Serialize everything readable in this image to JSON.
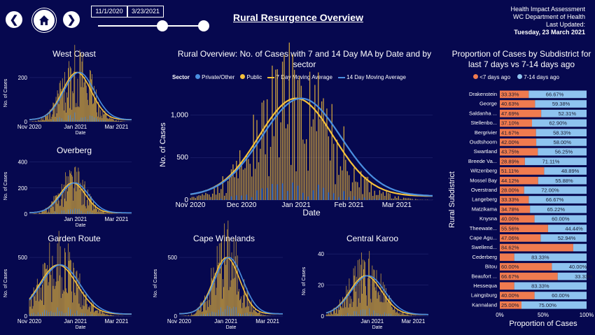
{
  "header": {
    "title": "Rural Resurgence Overview",
    "date_start": "11/1/2020",
    "date_end": "3/23/2021",
    "meta_lines": [
      "Health Impact Assessment",
      "WC Department of Health",
      "Last Updated:"
    ],
    "updated": "Tuesday, 23 March 2021"
  },
  "colors": {
    "background": "#06084f",
    "private": "#4a8fe0",
    "public": "#f5c13a",
    "ma14": "#4a8fe0",
    "ma7": "#f5c13a",
    "seven_days": "#f07b4f",
    "fourteen_days": "#8ec3ef"
  },
  "legend": {
    "sector_label": "Sector",
    "items": [
      "Private/Other",
      "Public",
      "7 Day Moving Average",
      "14 Day Moving Average"
    ]
  },
  "chart_data": [
    {
      "type": "bar",
      "id": "main",
      "title": "Rural Overview: No. of Cases with 7 and 14 Day MA by Date and by sector",
      "xlabel": "Date",
      "ylabel": "No. of Cases",
      "ylim": [
        0,
        1300
      ],
      "yticks": [
        0,
        500,
        1000
      ],
      "ytick_labels": [
        "0",
        "500",
        "1,000"
      ],
      "xticks": [
        "Nov 2020",
        "Dec 2020",
        "Jan 2021",
        "Feb 2021",
        "Mar 2021"
      ],
      "peak": 1150,
      "peak_day": 62,
      "width": 22
    },
    {
      "type": "bar",
      "id": "west_coast",
      "title": "West Coast",
      "xlabel": "Date",
      "ylabel": "No. of Cases",
      "ylim": [
        0,
        260
      ],
      "yticks": [
        0,
        200
      ],
      "ytick_labels": [
        "0",
        "200"
      ],
      "xticks": [
        "Nov 2020",
        "Jan 2021",
        "Mar 2021"
      ],
      "peak": 215,
      "peak_day": 66,
      "width": 20
    },
    {
      "type": "bar",
      "id": "overberg",
      "title": "Overberg",
      "xlabel": "Date",
      "ylabel": "No. of Cases",
      "ylim": [
        0,
        430
      ],
      "yticks": [
        0,
        200,
        400
      ],
      "ytick_labels": [
        "0",
        "200",
        "400"
      ],
      "xticks": [
        "Jan 2021",
        "Mar 2021"
      ],
      "peak": 230,
      "peak_day": 60,
      "width": 18
    },
    {
      "type": "bar",
      "id": "garden_route",
      "title": "Garden Route",
      "xlabel": "Date",
      "ylabel": "No. of Cases",
      "ylim": [
        0,
        560
      ],
      "yticks": [
        0,
        500
      ],
      "ytick_labels": [
        "0",
        "500"
      ],
      "xticks": [
        "Nov 2020",
        "Jan 2021",
        "Mar 2021"
      ],
      "peak": 420,
      "peak_day": 40,
      "width": 26
    },
    {
      "type": "bar",
      "id": "cape_winelands",
      "title": "Cape Winelands",
      "xlabel": "Date",
      "ylabel": "No. of Cases",
      "ylim": [
        0,
        560
      ],
      "yticks": [
        0,
        500
      ],
      "ytick_labels": [
        "0",
        "500"
      ],
      "xticks": [
        "Nov 2020",
        "Jan 2021",
        "Mar 2021"
      ],
      "peak": 480,
      "peak_day": 65,
      "width": 18
    },
    {
      "type": "bar",
      "id": "central_karoo",
      "title": "Central Karoo",
      "xlabel": "Date",
      "ylabel": "No. of Cases",
      "ylim": [
        0,
        45
      ],
      "yticks": [
        0,
        20,
        40
      ],
      "ytick_labels": [
        "0",
        "20",
        "40"
      ],
      "xticks": [
        "Jan 2021",
        "Mar 2021"
      ],
      "peak": 25,
      "peak_day": 55,
      "width": 22
    },
    {
      "type": "bar",
      "id": "subdistricts",
      "orientation": "horizontal",
      "stacked": true,
      "title": "Proportion of Cases by Subdistrict for last 7 days vs 7-14 days ago",
      "xlabel": "Proportion of Cases",
      "ylabel": "Rural Subdistrict",
      "xticks": [
        "0%",
        "50%",
        "100%"
      ],
      "series": [
        {
          "name": "<7 days ago"
        },
        {
          "name": "7-14 days ago"
        }
      ],
      "categories": [
        "Drakenstein",
        "George",
        "Saldanha ...",
        "Stellenbo...",
        "Bergrivier",
        "Oudtshoorn",
        "Swartland",
        "Breede Va...",
        "Witzenberg",
        "Mossel Bay",
        "Overstrand",
        "Langeberg",
        "Matzikama",
        "Knysna",
        "Theewate...",
        "Cape Agu...",
        "Swellend...",
        "Cederberg",
        "Bitou",
        "Beaufort ...",
        "Hessequa",
        "Laingsburg",
        "Kannaland"
      ],
      "seven": [
        33.33,
        40.63,
        47.69,
        37.1,
        41.67,
        42.0,
        43.75,
        28.89,
        51.11,
        44.12,
        28.0,
        33.33,
        34.78,
        40.0,
        55.56,
        47.06,
        84.62,
        16.67,
        60.0,
        66.67,
        16.67,
        40.0,
        25.0
      ],
      "seven_labels": [
        "33.33%",
        "40.63%",
        "47.69%",
        "37.10%",
        "41.67%",
        "42.00%",
        "43.75%",
        "28.89%",
        "51.11%",
        "44.12%",
        "28.00%",
        "33.33%",
        "34.78%",
        "40.00%",
        "55.56%",
        "47.06%",
        "84.62%",
        "",
        "60.00%",
        "66.67%",
        "",
        "40.00%",
        "25.00%"
      ],
      "fourteen": [
        66.67,
        59.38,
        52.31,
        62.9,
        58.33,
        58.0,
        56.25,
        71.11,
        48.89,
        55.88,
        72.0,
        66.67,
        65.22,
        60.0,
        44.44,
        52.94,
        15.38,
        83.33,
        40.0,
        33.33,
        83.33,
        60.0,
        75.0
      ],
      "fourteen_labels": [
        "66.67%",
        "59.38%",
        "52.31%",
        "62.90%",
        "58.33%",
        "58.00%",
        "56.25%",
        "71.11%",
        "48.89%",
        "55.88%",
        "72.00%",
        "66.67%",
        "65.22%",
        "60.00%",
        "44.44%",
        "52.94%",
        "",
        "83.33%",
        "40.00%",
        "33.33%",
        "83.33%",
        "60.00%",
        "75.00%"
      ]
    }
  ]
}
